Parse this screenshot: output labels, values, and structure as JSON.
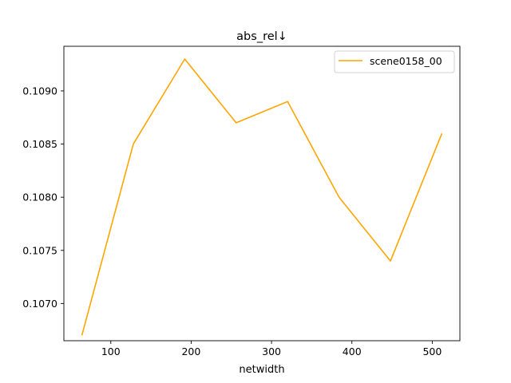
{
  "chart_data": {
    "type": "line",
    "title": "abs_rel↓",
    "xlabel": "netwidth",
    "ylabel": "",
    "xlim": [
      41.6,
      534.4
    ],
    "ylim": [
      0.10665,
      0.10942
    ],
    "x_ticks": [
      100,
      200,
      300,
      400,
      500
    ],
    "y_ticks": [
      0.107,
      0.1075,
      0.108,
      0.1085,
      0.109
    ],
    "x_tick_labels": [
      "100",
      "200",
      "300",
      "400",
      "500"
    ],
    "y_tick_labels": [
      "0.1070",
      "0.1075",
      "0.1080",
      "0.1085",
      "0.1090"
    ],
    "grid": false,
    "legend_position": "top-right",
    "series": [
      {
        "name": "scene0158_00",
        "color": "#ffa500",
        "x": [
          64,
          128,
          192,
          256,
          320,
          384,
          448,
          512
        ],
        "y": [
          0.1067,
          0.1085,
          0.1093,
          0.1087,
          0.1089,
          0.108,
          0.1074,
          0.1086
        ]
      }
    ]
  }
}
